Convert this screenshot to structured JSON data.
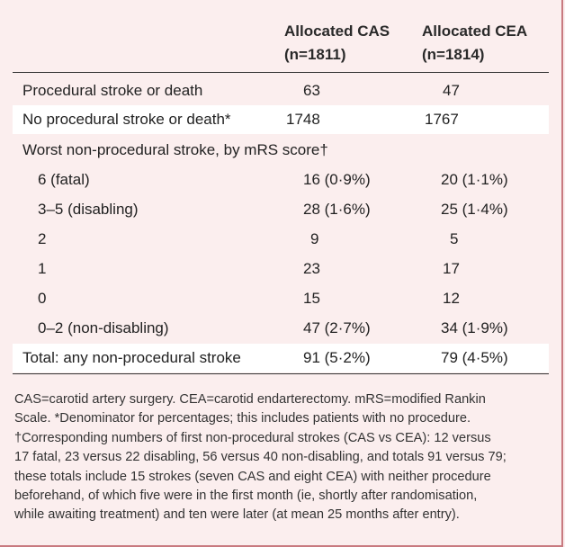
{
  "table": {
    "col_cas": {
      "line1": "Allocated CAS",
      "line2": "(n=1811)"
    },
    "col_cea": {
      "line1": "Allocated CEA",
      "line2": "(n=1814)"
    },
    "rows": [
      {
        "label": "Procedural stroke or death",
        "cas": "63",
        "cea": "47"
      },
      {
        "label": "No procedural stroke or death*",
        "cas": "1748",
        "cea": "1767"
      },
      {
        "label": "Worst non-procedural stroke, by mRS score†",
        "cas": "",
        "cea": ""
      },
      {
        "label": "6 (fatal)",
        "cas": "16 (0·9%)",
        "cea": "20 (1·1%)"
      },
      {
        "label": "3–5 (disabling)",
        "cas": "28 (1·6%)",
        "cea": "25 (1·4%)"
      },
      {
        "label": "2",
        "cas": "9",
        "cea": "5"
      },
      {
        "label": "1",
        "cas": "23",
        "cea": "17"
      },
      {
        "label": "0",
        "cas": "15",
        "cea": "12"
      },
      {
        "label": "0–2 (non-disabling)",
        "cas": "47 (2·7%)",
        "cea": "34 (1·9%)"
      },
      {
        "label": "Total: any non-procedural stroke",
        "cas": "91 (5·2%)",
        "cea": "79 (4·5%)"
      }
    ]
  },
  "footnote": {
    "lines": [
      "CAS=carotid artery surgery. CEA=carotid endarterectomy. mRS=modified Rankin",
      "Scale. *Denominator for percentages; this includes patients with no procedure.",
      "†Corresponding numbers of first non-procedural strokes (CAS vs CEA): 12 versus",
      "17 fatal, 23 versus 22 disabling, 56 versus 40 non-disabling, and totals 91 versus 79;",
      "these totals include 15 strokes (seven CAS and eight CEA) with neither procedure",
      "beforehand, of which five were in the first month (ie, shortly after randomisation,",
      "while awaiting treatment) and ten were later (at mean 25 months after entry)."
    ]
  }
}
